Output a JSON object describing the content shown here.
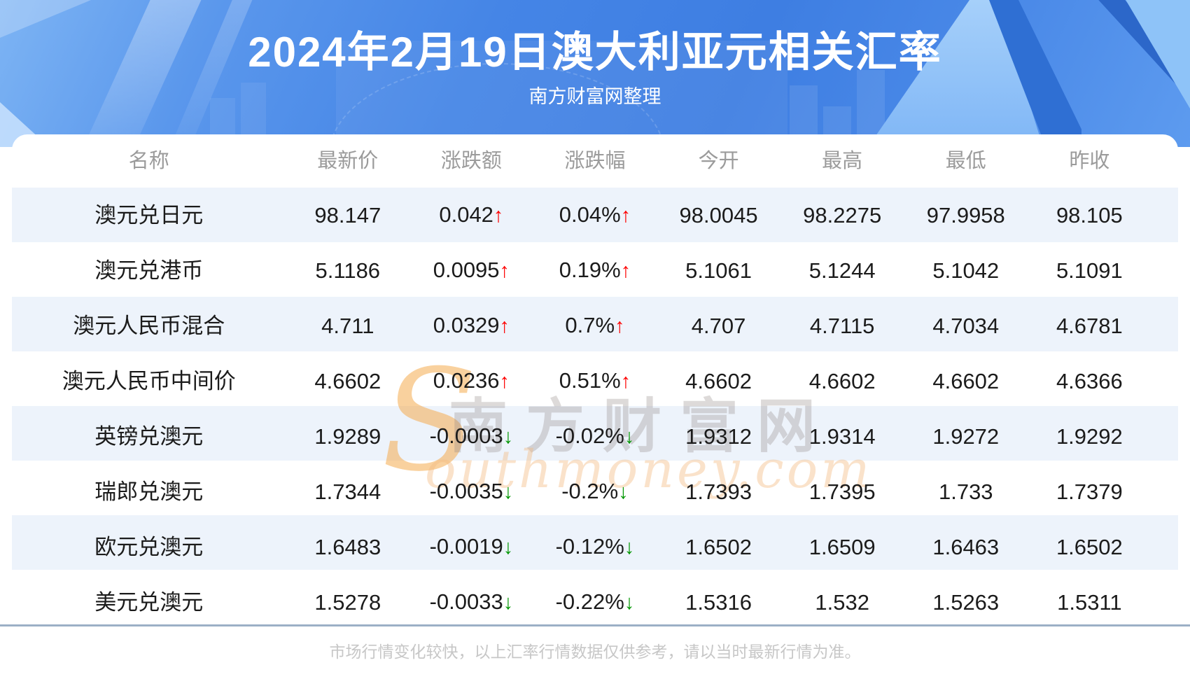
{
  "header": {
    "title": "2024年2月19日澳大利亚元相关汇率",
    "subtitle": "南方财富网整理"
  },
  "watermark": {
    "s_glyph": "S",
    "cn_text": "南方财富网",
    "en_text": "outhmoney.com"
  },
  "arrows": {
    "up": "↑",
    "down": "↓"
  },
  "table": {
    "columns": [
      "名称",
      "最新价",
      "涨跌额",
      "涨跌幅",
      "今开",
      "最高",
      "最低",
      "昨收"
    ],
    "rows": [
      {
        "name": "澳元兑日元",
        "last": "98.147",
        "change": "0.042",
        "pct": "0.04%",
        "dir": "up",
        "open": "98.0045",
        "high": "98.2275",
        "low": "97.9958",
        "prev": "98.105"
      },
      {
        "name": "澳元兑港币",
        "last": "5.1186",
        "change": "0.0095",
        "pct": "0.19%",
        "dir": "up",
        "open": "5.1061",
        "high": "5.1244",
        "low": "5.1042",
        "prev": "5.1091"
      },
      {
        "name": "澳元人民币混合",
        "last": "4.711",
        "change": "0.0329",
        "pct": "0.7%",
        "dir": "up",
        "open": "4.707",
        "high": "4.7115",
        "low": "4.7034",
        "prev": "4.6781"
      },
      {
        "name": "澳元人民币中间价",
        "last": "4.6602",
        "change": "0.0236",
        "pct": "0.51%",
        "dir": "up",
        "open": "4.6602",
        "high": "4.6602",
        "low": "4.6602",
        "prev": "4.6366"
      },
      {
        "name": "英镑兑澳元",
        "last": "1.9289",
        "change": "-0.0003",
        "pct": "-0.02%",
        "dir": "down",
        "open": "1.9312",
        "high": "1.9314",
        "low": "1.9272",
        "prev": "1.9292"
      },
      {
        "name": "瑞郎兑澳元",
        "last": "1.7344",
        "change": "-0.0035",
        "pct": "-0.2%",
        "dir": "down",
        "open": "1.7393",
        "high": "1.7395",
        "low": "1.733",
        "prev": "1.7379"
      },
      {
        "name": "欧元兑澳元",
        "last": "1.6483",
        "change": "-0.0019",
        "pct": "-0.12%",
        "dir": "down",
        "open": "1.6502",
        "high": "1.6509",
        "low": "1.6463",
        "prev": "1.6502"
      },
      {
        "name": "美元兑澳元",
        "last": "1.5278",
        "change": "-0.0033",
        "pct": "-0.22%",
        "dir": "down",
        "open": "1.5316",
        "high": "1.532",
        "low": "1.5263",
        "prev": "1.5311"
      }
    ]
  },
  "footer": {
    "note": "市场行情变化较快，以上汇率行情数据仅供参考，请以当时最新行情为准。"
  },
  "colors": {
    "up_red": "#fd0000",
    "down_green": "#009600",
    "row_alt_blue": "#edf3fb",
    "header_text_gray": "#9b9b9b",
    "hero_blue": "#4585e6",
    "divider_blue_gray": "#9cb0c6",
    "footer_text_gray": "#c7c7c7",
    "watermark_orange": "#f5a53f"
  }
}
